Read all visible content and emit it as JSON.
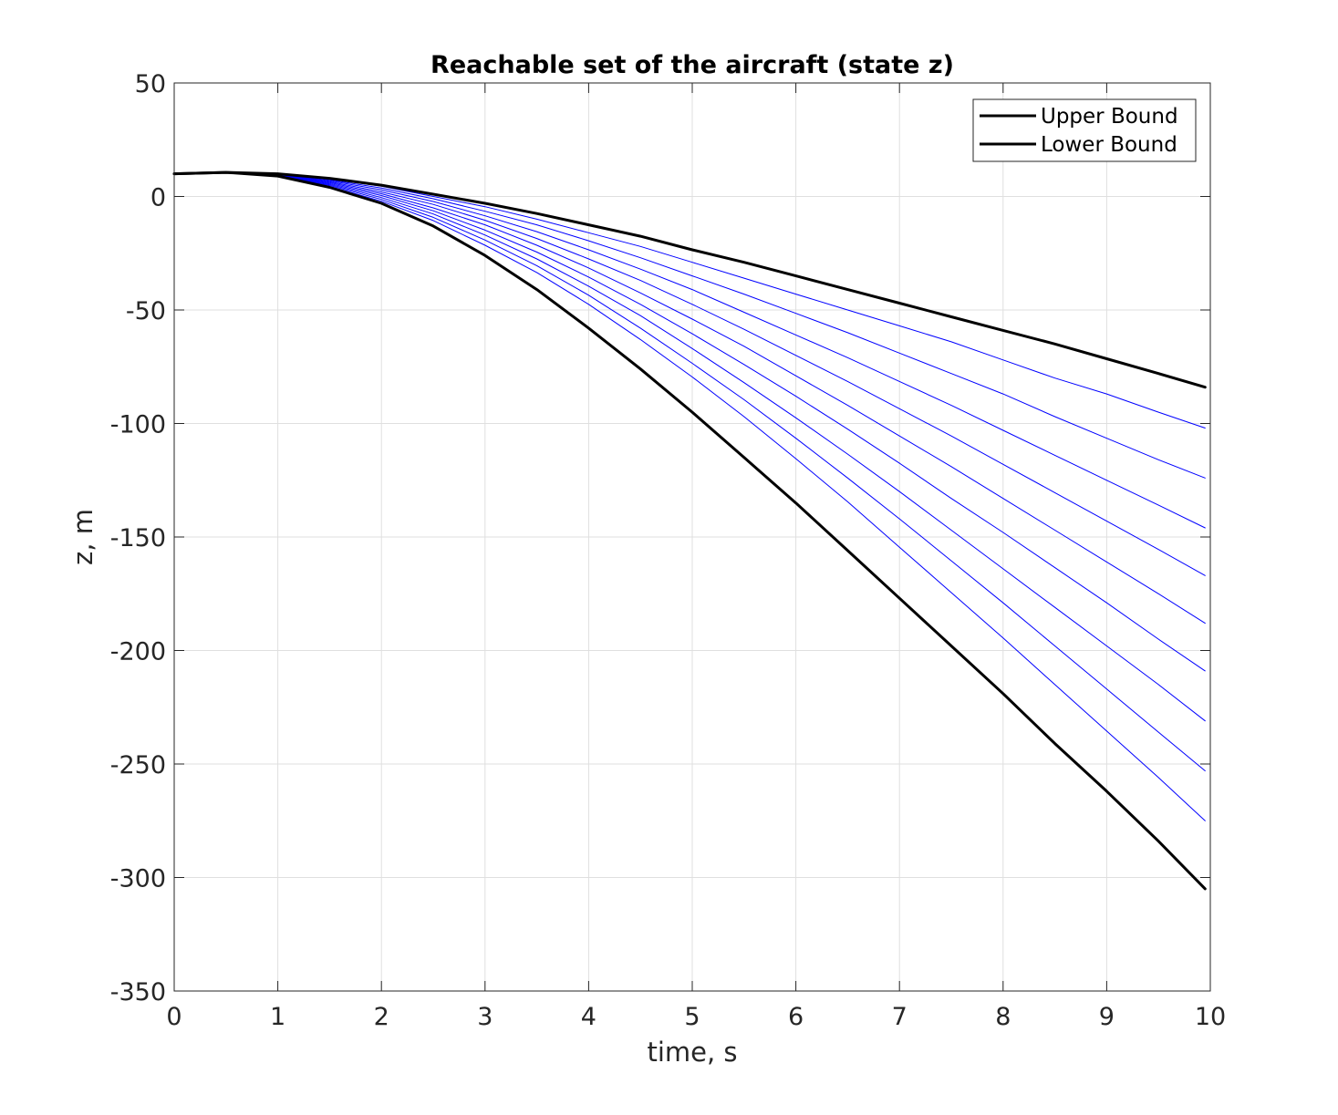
{
  "chart_data": {
    "type": "line",
    "title": "Reachable set of the aircraft (state z)",
    "xlabel": "time, s",
    "ylabel": "z, m",
    "xlim": [
      0,
      10
    ],
    "ylim": [
      -350,
      50
    ],
    "xticks": [
      0,
      1,
      2,
      3,
      4,
      5,
      6,
      7,
      8,
      9,
      10
    ],
    "yticks": [
      50,
      0,
      -50,
      -100,
      -150,
      -200,
      -250,
      -300,
      -350
    ],
    "grid": true,
    "legend_position": "top-right",
    "colors": {
      "bound": "#000000",
      "trajectory": "#0000ff"
    },
    "x": [
      0,
      0.5,
      1,
      1.5,
      2,
      2.5,
      3,
      3.5,
      4,
      4.5,
      5,
      5.5,
      6,
      6.5,
      7,
      7.5,
      8,
      8.5,
      9,
      9.5,
      9.95
    ],
    "series": [
      {
        "name": "Upper Bound",
        "role": "bound",
        "values": [
          10,
          10.6,
          10,
          8,
          5,
          1,
          -3,
          -7.5,
          -12.5,
          -17.5,
          -23.5,
          -29,
          -35,
          -41,
          -47,
          -53,
          -59,
          -65,
          -71.5,
          -78,
          -84
        ]
      },
      {
        "name": "Lower Bound",
        "role": "bound",
        "values": [
          10,
          10.6,
          9,
          4,
          -3,
          -13,
          -26,
          -41,
          -58,
          -76,
          -95,
          -115,
          -135,
          -156,
          -177,
          -198,
          -219,
          -241,
          -262,
          -284,
          -305
        ]
      },
      {
        "role": "trajectory",
        "values": [
          10,
          10.6,
          10,
          7.7,
          4.5,
          0,
          -4.5,
          -10,
          -16,
          -22,
          -29,
          -36,
          -43,
          -50,
          -57,
          -64,
          -72,
          -80,
          -87,
          -95,
          -102
        ]
      },
      {
        "role": "trajectory",
        "values": [
          10,
          10.6,
          9.9,
          7.3,
          3.7,
          -1,
          -6.5,
          -12.5,
          -19.5,
          -27,
          -35,
          -43,
          -51.5,
          -60,
          -69,
          -78,
          -87,
          -97,
          -106.5,
          -116,
          -124
        ]
      },
      {
        "role": "trajectory",
        "values": [
          10,
          10.6,
          9.8,
          6.9,
          2.9,
          -2.2,
          -8.5,
          -15.5,
          -23.5,
          -32,
          -41,
          -51,
          -61,
          -71,
          -81.5,
          -92,
          -103,
          -114,
          -125,
          -136,
          -146
        ]
      },
      {
        "role": "trajectory",
        "values": [
          10,
          10.6,
          9.7,
          6.5,
          2,
          -3.5,
          -10.5,
          -18.5,
          -27.5,
          -37,
          -47.5,
          -58.5,
          -70,
          -81.5,
          -93.5,
          -105.5,
          -118,
          -130.5,
          -143,
          -155.5,
          -167
        ]
      },
      {
        "role": "trajectory",
        "values": [
          10,
          10.6,
          9.6,
          6.1,
          1.2,
          -5,
          -12.5,
          -21.5,
          -31.5,
          -42.5,
          -54,
          -66,
          -79,
          -92,
          -105.5,
          -119,
          -133,
          -147,
          -161,
          -175,
          -188
        ]
      },
      {
        "role": "trajectory",
        "values": [
          10,
          10.6,
          9.5,
          5.7,
          0.4,
          -6.3,
          -14.8,
          -24.5,
          -35.5,
          -47.5,
          -60.5,
          -74,
          -88,
          -102.5,
          -117.5,
          -133,
          -148,
          -163.5,
          -179,
          -195,
          -209
        ]
      },
      {
        "role": "trajectory",
        "values": [
          10,
          10.6,
          9.4,
          5.3,
          -0.5,
          -7.7,
          -17,
          -27.5,
          -39.5,
          -52.5,
          -67,
          -82,
          -97.5,
          -113.5,
          -130,
          -147,
          -164,
          -181,
          -198,
          -215,
          -231
        ]
      },
      {
        "role": "trajectory",
        "values": [
          10,
          10.6,
          9.3,
          4.9,
          -1.3,
          -9.2,
          -19.2,
          -30.5,
          -43.5,
          -58,
          -73.5,
          -89.5,
          -106.5,
          -124,
          -142,
          -160.5,
          -179,
          -198,
          -217,
          -236,
          -253
        ]
      },
      {
        "role": "trajectory",
        "values": [
          10,
          10.6,
          9.2,
          4.5,
          -2.1,
          -10.6,
          -21.5,
          -33.5,
          -47.5,
          -63,
          -79.5,
          -97,
          -115.5,
          -134.5,
          -154.5,
          -174.5,
          -194.5,
          -215,
          -235.5,
          -256,
          -275
        ]
      }
    ]
  },
  "legend": {
    "items": [
      {
        "label": "Upper Bound",
        "color": "#000000"
      },
      {
        "label": "Lower Bound",
        "color": "#000000"
      }
    ]
  }
}
